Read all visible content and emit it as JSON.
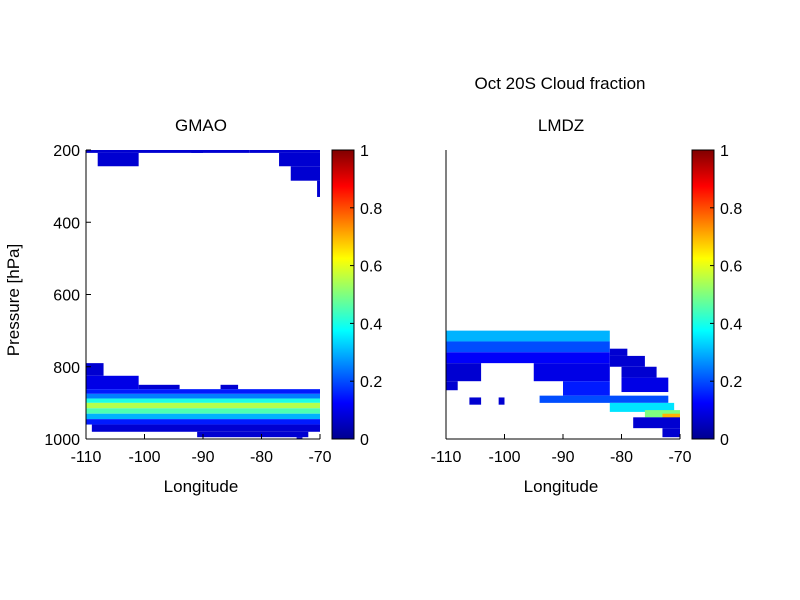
{
  "figure_title": "Oct 20S Cloud fraction",
  "chart_data": [
    {
      "type": "heatmap",
      "title": "GMAO",
      "xlabel": "Longitude",
      "ylabel": "Pressure [hPa]",
      "xlim": [
        -110,
        -70
      ],
      "ylim": [
        1000,
        200
      ],
      "xticks": [
        "-110",
        "-100",
        "-90",
        "-80",
        "-70"
      ],
      "yticks": [
        "200",
        "400",
        "600",
        "800",
        "1000"
      ],
      "colorbar": {
        "min": 0,
        "max": 1,
        "ticks": [
          "0",
          "0.2",
          "0.4",
          "0.6",
          "0.8",
          "1"
        ]
      },
      "cells": [
        {
          "lon": [
            -110,
            -82
          ],
          "p": [
            200,
            208
          ],
          "v": 0.08
        },
        {
          "lon": [
            -92,
            -90
          ],
          "p": [
            200,
            208
          ],
          "v": 0.08
        },
        {
          "lon": [
            -82,
            -70
          ],
          "p": [
            200,
            208
          ],
          "v": 0.08
        },
        {
          "lon": [
            -108,
            -101
          ],
          "p": [
            208,
            245
          ],
          "v": 0.08
        },
        {
          "lon": [
            -77,
            -70
          ],
          "p": [
            208,
            245
          ],
          "v": 0.08
        },
        {
          "lon": [
            -75,
            -70
          ],
          "p": [
            245,
            285
          ],
          "v": 0.08
        },
        {
          "lon": [
            -70.5,
            -70
          ],
          "p": [
            285,
            330
          ],
          "v": 0.08
        },
        {
          "lon": [
            -110,
            -107
          ],
          "p": [
            790,
            825
          ],
          "v": 0.08
        },
        {
          "lon": [
            -110,
            -101
          ],
          "p": [
            825,
            862
          ],
          "v": 0.1
        },
        {
          "lon": [
            -101,
            -94
          ],
          "p": [
            850,
            862
          ],
          "v": 0.08
        },
        {
          "lon": [
            -87,
            -84
          ],
          "p": [
            850,
            862
          ],
          "v": 0.08
        },
        {
          "lon": [
            -110,
            -70
          ],
          "p": [
            862,
            875
          ],
          "v": 0.15
        },
        {
          "lon": [
            -110,
            -70
          ],
          "p": [
            875,
            888
          ],
          "v": 0.25
        },
        {
          "lon": [
            -110,
            -70
          ],
          "p": [
            888,
            900
          ],
          "v": 0.4
        },
        {
          "lon": [
            -110,
            -70
          ],
          "p": [
            900,
            915
          ],
          "v": 0.55
        },
        {
          "lon": [
            -110,
            -70
          ],
          "p": [
            915,
            930
          ],
          "v": 0.45
        },
        {
          "lon": [
            -110,
            -70
          ],
          "p": [
            930,
            945
          ],
          "v": 0.3
        },
        {
          "lon": [
            -110,
            -70
          ],
          "p": [
            945,
            960
          ],
          "v": 0.15
        },
        {
          "lon": [
            -109,
            -70
          ],
          "p": [
            960,
            980
          ],
          "v": 0.08
        },
        {
          "lon": [
            -91,
            -72
          ],
          "p": [
            980,
            995
          ],
          "v": 0.08
        },
        {
          "lon": [
            -74,
            -73
          ],
          "p": [
            995,
            1000
          ],
          "v": 0.08
        }
      ]
    },
    {
      "type": "heatmap",
      "title": "LMDZ",
      "xlabel": "Longitude",
      "ylabel": "",
      "xlim": [
        -110,
        -70
      ],
      "ylim": [
        1000,
        200
      ],
      "xticks": [
        "-110",
        "-100",
        "-90",
        "-80",
        "-70"
      ],
      "yticks": [],
      "colorbar": {
        "min": 0,
        "max": 1,
        "ticks": [
          "0",
          "0.2",
          "0.4",
          "0.6",
          "0.8",
          "1"
        ]
      },
      "cells": [
        {
          "lon": [
            -110,
            -82
          ],
          "p": [
            700,
            730
          ],
          "v": 0.3
        },
        {
          "lon": [
            -110,
            -82
          ],
          "p": [
            730,
            760
          ],
          "v": 0.2
        },
        {
          "lon": [
            -82,
            -79
          ],
          "p": [
            750,
            770
          ],
          "v": 0.08
        },
        {
          "lon": [
            -110,
            -82
          ],
          "p": [
            760,
            790
          ],
          "v": 0.12
        },
        {
          "lon": [
            -82,
            -76
          ],
          "p": [
            770,
            800
          ],
          "v": 0.08
        },
        {
          "lon": [
            -110,
            -104
          ],
          "p": [
            790,
            840
          ],
          "v": 0.08
        },
        {
          "lon": [
            -95,
            -82
          ],
          "p": [
            790,
            840
          ],
          "v": 0.1
        },
        {
          "lon": [
            -80,
            -74
          ],
          "p": [
            800,
            830
          ],
          "v": 0.08
        },
        {
          "lon": [
            -90,
            -82
          ],
          "p": [
            840,
            880
          ],
          "v": 0.15
        },
        {
          "lon": [
            -80,
            -72
          ],
          "p": [
            830,
            870
          ],
          "v": 0.1
        },
        {
          "lon": [
            -110,
            -108
          ],
          "p": [
            840,
            865
          ],
          "v": 0.08
        },
        {
          "lon": [
            -94,
            -72
          ],
          "p": [
            880,
            900
          ],
          "v": 0.2
        },
        {
          "lon": [
            -82,
            -71
          ],
          "p": [
            900,
            925
          ],
          "v": 0.35
        },
        {
          "lon": [
            -76,
            -70
          ],
          "p": [
            920,
            940
          ],
          "v": 0.5
        },
        {
          "lon": [
            -73,
            -70
          ],
          "p": [
            930,
            945
          ],
          "v": 0.7
        },
        {
          "lon": [
            -106,
            -104
          ],
          "p": [
            885,
            905
          ],
          "v": 0.08
        },
        {
          "lon": [
            -101,
            -100
          ],
          "p": [
            885,
            905
          ],
          "v": 0.08
        },
        {
          "lon": [
            -78,
            -70
          ],
          "p": [
            940,
            970
          ],
          "v": 0.08
        },
        {
          "lon": [
            -73,
            -70
          ],
          "p": [
            970,
            995
          ],
          "v": 0.08
        }
      ]
    }
  ]
}
